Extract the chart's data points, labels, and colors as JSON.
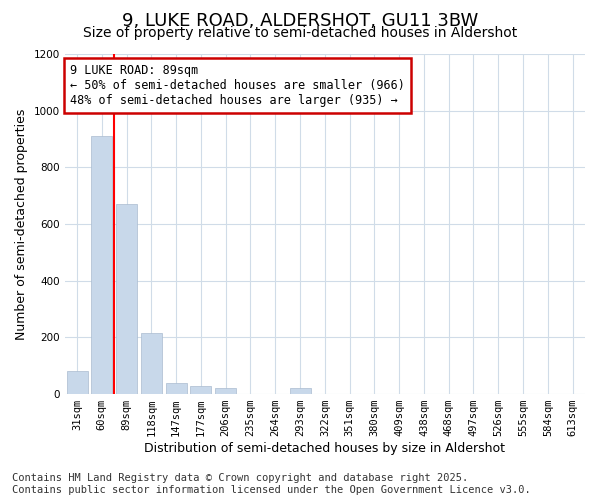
{
  "title_line1": "9, LUKE ROAD, ALDERSHOT, GU11 3BW",
  "title_line2": "Size of property relative to semi-detached houses in Aldershot",
  "xlabel": "Distribution of semi-detached houses by size in Aldershot",
  "ylabel": "Number of semi-detached properties",
  "categories": [
    "31sqm",
    "60sqm",
    "89sqm",
    "118sqm",
    "147sqm",
    "177sqm",
    "206sqm",
    "235sqm",
    "264sqm",
    "293sqm",
    "322sqm",
    "351sqm",
    "380sqm",
    "409sqm",
    "438sqm",
    "468sqm",
    "497sqm",
    "526sqm",
    "555sqm",
    "584sqm",
    "613sqm"
  ],
  "values": [
    80,
    910,
    670,
    215,
    40,
    30,
    20,
    0,
    0,
    20,
    0,
    0,
    0,
    0,
    0,
    0,
    0,
    0,
    0,
    0,
    0
  ],
  "bar_color": "#c8d8ea",
  "bar_edge_color": "#aabbd0",
  "red_line_x": 1.5,
  "ylim": [
    0,
    1200
  ],
  "yticks": [
    0,
    200,
    400,
    600,
    800,
    1000,
    1200
  ],
  "annotation_text_line1": "9 LUKE ROAD: 89sqm",
  "annotation_text_line2": "← 50% of semi-detached houses are smaller (966)",
  "annotation_text_line3": "48% of semi-detached houses are larger (935) →",
  "annotation_box_color": "#ffffff",
  "annotation_box_edge_color": "#cc0000",
  "footer_line1": "Contains HM Land Registry data © Crown copyright and database right 2025.",
  "footer_line2": "Contains public sector information licensed under the Open Government Licence v3.0.",
  "background_color": "#ffffff",
  "grid_color": "#d0dce8",
  "title_fontsize": 13,
  "subtitle_fontsize": 10,
  "tick_fontsize": 7.5,
  "label_fontsize": 9,
  "footer_fontsize": 7.5,
  "annotation_fontsize": 8.5
}
